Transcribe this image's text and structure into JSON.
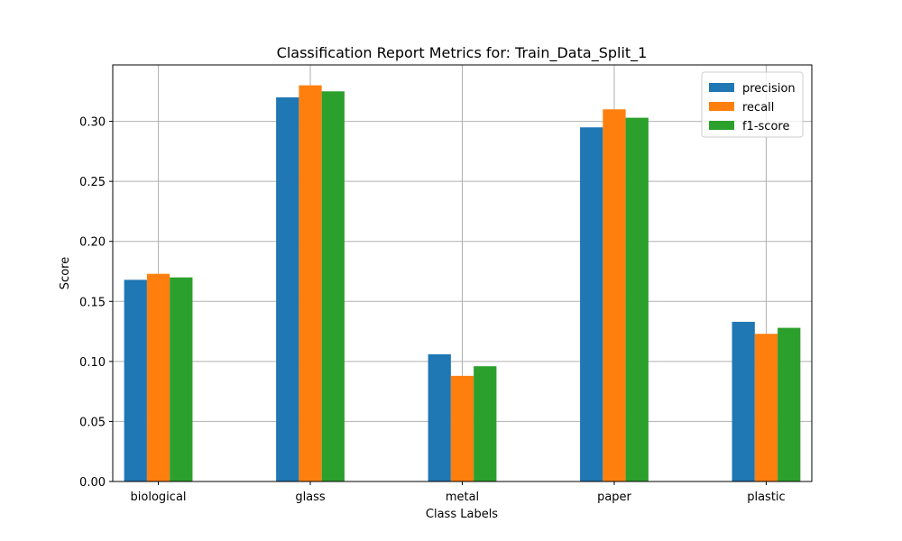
{
  "chart_data": {
    "type": "bar",
    "title": "Classification Report Metrics for: Train_Data_Split_1",
    "xlabel": "Class Labels",
    "ylabel": "Score",
    "categories": [
      "biological",
      "glass",
      "metal",
      "paper",
      "plastic"
    ],
    "series": [
      {
        "name": "precision",
        "color": "#1f77b4",
        "values": [
          0.168,
          0.32,
          0.106,
          0.295,
          0.133
        ]
      },
      {
        "name": "recall",
        "color": "#ff7f0e",
        "values": [
          0.173,
          0.33,
          0.088,
          0.31,
          0.123
        ]
      },
      {
        "name": "f1-score",
        "color": "#2ca02c",
        "values": [
          0.17,
          0.325,
          0.096,
          0.303,
          0.128
        ]
      }
    ],
    "ylim": [
      0,
      0.347
    ],
    "yticks": [
      "0.00",
      "0.05",
      "0.10",
      "0.15",
      "0.20",
      "0.25",
      "0.30"
    ],
    "grid": true,
    "legend_position": "top-right"
  }
}
